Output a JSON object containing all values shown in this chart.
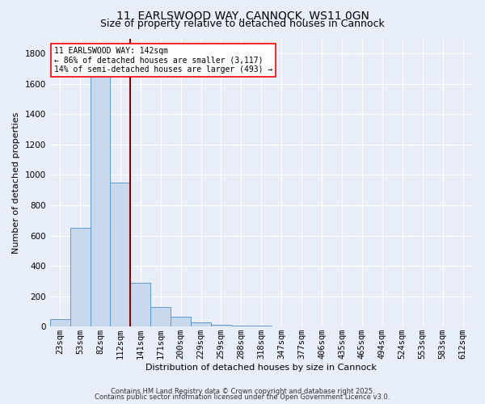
{
  "title1": "11, EARLSWOOD WAY, CANNOCK, WS11 0GN",
  "title2": "Size of property relative to detached houses in Cannock",
  "xlabel": "Distribution of detached houses by size in Cannock",
  "ylabel": "Number of detached properties",
  "bar_labels": [
    "23sqm",
    "53sqm",
    "82sqm",
    "112sqm",
    "141sqm",
    "171sqm",
    "200sqm",
    "229sqm",
    "259sqm",
    "288sqm",
    "318sqm",
    "347sqm",
    "377sqm",
    "406sqm",
    "435sqm",
    "465sqm",
    "494sqm",
    "524sqm",
    "553sqm",
    "583sqm",
    "612sqm"
  ],
  "bar_values": [
    50,
    650,
    1650,
    950,
    290,
    130,
    65,
    25,
    10,
    5,
    5,
    3,
    2,
    2,
    1,
    1,
    1,
    1,
    1,
    1,
    1
  ],
  "bar_color": "#c8d9ee",
  "bar_edge_color": "#5b9bd5",
  "vline_color": "#8B0000",
  "ann_line1": "11 EARLSWOOD WAY: 142sqm",
  "ann_line2": "← 86% of detached houses are smaller (3,117)",
  "ann_line3": "14% of semi-detached houses are larger (493) →",
  "ylim": [
    0,
    1900
  ],
  "yticks": [
    0,
    200,
    400,
    600,
    800,
    1000,
    1200,
    1400,
    1600,
    1800
  ],
  "footer1": "Contains HM Land Registry data © Crown copyright and database right 2025.",
  "footer2": "Contains public sector information licensed under the Open Government Licence v3.0.",
  "bg_color": "#e8eef8",
  "plot_bg_color": "#e8eef8",
  "grid_color": "#ffffff",
  "title_fontsize": 10,
  "subtitle_fontsize": 9,
  "axis_label_fontsize": 8,
  "tick_fontsize": 7.5,
  "ann_fontsize": 7,
  "footer_fontsize": 6
}
